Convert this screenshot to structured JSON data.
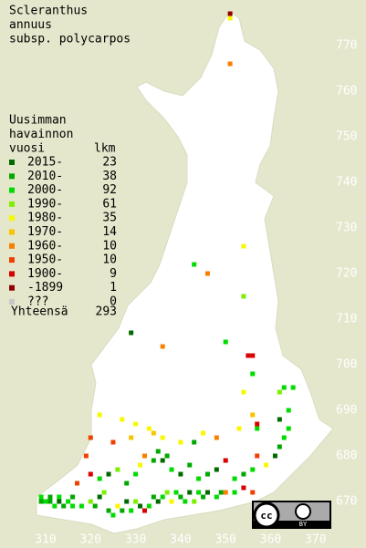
{
  "title": [
    "Scleranthus",
    "annuus",
    "subsp. polycarpos"
  ],
  "legend": {
    "header": [
      "Uusimman",
      "havainnon",
      "vuosi"
    ],
    "count_header": "lkm",
    "entries": [
      {
        "label": "2015-",
        "count": 23,
        "color": "#006a00"
      },
      {
        "label": "2010-",
        "count": 38,
        "color": "#00a800"
      },
      {
        "label": "2000-",
        "count": 92,
        "color": "#00dc00"
      },
      {
        "label": "1990-",
        "count": 61,
        "color": "#7cf000"
      },
      {
        "label": "1980-",
        "count": 35,
        "color": "#f8f800"
      },
      {
        "label": "1970-",
        "count": 14,
        "color": "#f8c400"
      },
      {
        "label": "1960-",
        "count": 10,
        "color": "#f88000"
      },
      {
        "label": "1950-",
        "count": 10,
        "color": "#f04000"
      },
      {
        "label": "1900-",
        "count": 9,
        "color": "#d80000"
      },
      {
        "label": "-1899",
        "count": 1,
        "color": "#900000"
      },
      {
        "label": "???",
        "count": 0,
        "color": "#c8c8c8"
      }
    ],
    "total_label": "Yhteensä",
    "total": 293
  },
  "xticks": [
    310,
    320,
    330,
    340,
    350,
    360,
    370
  ],
  "yticks": [
    670,
    680,
    690,
    700,
    710,
    720,
    730,
    740,
    750,
    760,
    770
  ],
  "squares": [
    [
      351,
      777,
      9
    ],
    [
      351,
      776,
      4
    ],
    [
      351,
      766,
      6
    ],
    [
      354,
      726,
      4
    ],
    [
      343,
      722,
      2
    ],
    [
      346,
      720,
      6
    ],
    [
      354,
      715,
      3
    ],
    [
      329,
      707,
      0
    ],
    [
      350,
      705,
      2
    ],
    [
      336,
      704,
      6
    ],
    [
      355,
      702,
      8
    ],
    [
      356,
      702,
      8
    ],
    [
      356,
      698,
      2
    ],
    [
      363,
      695,
      2
    ],
    [
      365,
      695,
      2
    ],
    [
      362,
      694,
      3
    ],
    [
      354,
      694,
      4
    ],
    [
      309,
      670,
      1
    ],
    [
      310,
      670,
      2
    ],
    [
      311,
      670,
      1
    ],
    [
      312,
      669,
      2
    ],
    [
      313,
      670,
      0
    ],
    [
      314,
      669,
      1
    ],
    [
      315,
      670,
      2
    ],
    [
      316,
      669,
      2
    ],
    [
      309,
      671,
      2
    ],
    [
      311,
      671,
      1
    ],
    [
      313,
      671,
      2
    ],
    [
      316,
      671,
      1
    ],
    [
      318,
      669,
      2
    ],
    [
      320,
      670,
      3
    ],
    [
      321,
      669,
      1
    ],
    [
      322,
      671,
      0
    ],
    [
      323,
      672,
      3
    ],
    [
      324,
      668,
      1
    ],
    [
      325,
      667,
      2
    ],
    [
      326,
      669,
      4
    ],
    [
      327,
      668,
      1
    ],
    [
      328,
      670,
      0
    ],
    [
      329,
      668,
      2
    ],
    [
      330,
      670,
      3
    ],
    [
      331,
      669,
      0
    ],
    [
      332,
      668,
      8
    ],
    [
      333,
      669,
      2
    ],
    [
      334,
      671,
      1
    ],
    [
      335,
      670,
      0
    ],
    [
      336,
      671,
      2
    ],
    [
      337,
      672,
      3
    ],
    [
      338,
      670,
      4
    ],
    [
      339,
      672,
      2
    ],
    [
      340,
      671,
      1
    ],
    [
      341,
      670,
      2
    ],
    [
      342,
      672,
      0
    ],
    [
      343,
      670,
      3
    ],
    [
      344,
      672,
      2
    ],
    [
      345,
      671,
      1
    ],
    [
      346,
      672,
      0
    ],
    [
      348,
      671,
      2
    ],
    [
      349,
      672,
      1
    ],
    [
      350,
      672,
      6
    ],
    [
      352,
      672,
      2
    ],
    [
      354,
      673,
      8
    ],
    [
      356,
      672,
      7
    ],
    [
      322,
      675,
      2
    ],
    [
      324,
      676,
      0
    ],
    [
      326,
      677,
      3
    ],
    [
      328,
      674,
      1
    ],
    [
      330,
      676,
      2
    ],
    [
      331,
      678,
      4
    ],
    [
      332,
      680,
      6
    ],
    [
      334,
      679,
      1
    ],
    [
      335,
      681,
      1
    ],
    [
      336,
      679,
      0
    ],
    [
      337,
      680,
      1
    ],
    [
      338,
      677,
      2
    ],
    [
      340,
      676,
      0
    ],
    [
      342,
      678,
      1
    ],
    [
      344,
      675,
      2
    ],
    [
      346,
      676,
      1
    ],
    [
      348,
      677,
      0
    ],
    [
      350,
      679,
      8
    ],
    [
      352,
      675,
      2
    ],
    [
      354,
      676,
      1
    ],
    [
      356,
      677,
      2
    ],
    [
      357,
      680,
      7
    ],
    [
      359,
      678,
      4
    ],
    [
      361,
      680,
      0
    ],
    [
      362,
      682,
      1
    ],
    [
      363,
      684,
      2
    ],
    [
      364,
      686,
      2
    ],
    [
      362,
      688,
      0
    ],
    [
      357,
      687,
      8
    ],
    [
      356,
      689,
      5
    ],
    [
      353,
      686,
      4
    ],
    [
      348,
      684,
      6
    ],
    [
      345,
      685,
      4
    ],
    [
      343,
      683,
      1
    ],
    [
      340,
      683,
      4
    ],
    [
      336,
      684,
      4
    ],
    [
      334,
      685,
      5
    ],
    [
      333,
      686,
      4
    ],
    [
      329,
      684,
      5
    ],
    [
      325,
      683,
      7
    ],
    [
      320,
      684,
      7
    ],
    [
      322,
      689,
      4
    ],
    [
      327,
      688,
      4
    ],
    [
      330,
      687,
      4
    ],
    [
      319,
      680,
      7
    ],
    [
      320,
      676,
      8
    ],
    [
      317,
      674,
      7
    ],
    [
      357,
      686,
      2
    ],
    [
      364,
      690,
      2
    ]
  ],
  "license_badge": {
    "cc": "cc",
    "by": "BY"
  }
}
